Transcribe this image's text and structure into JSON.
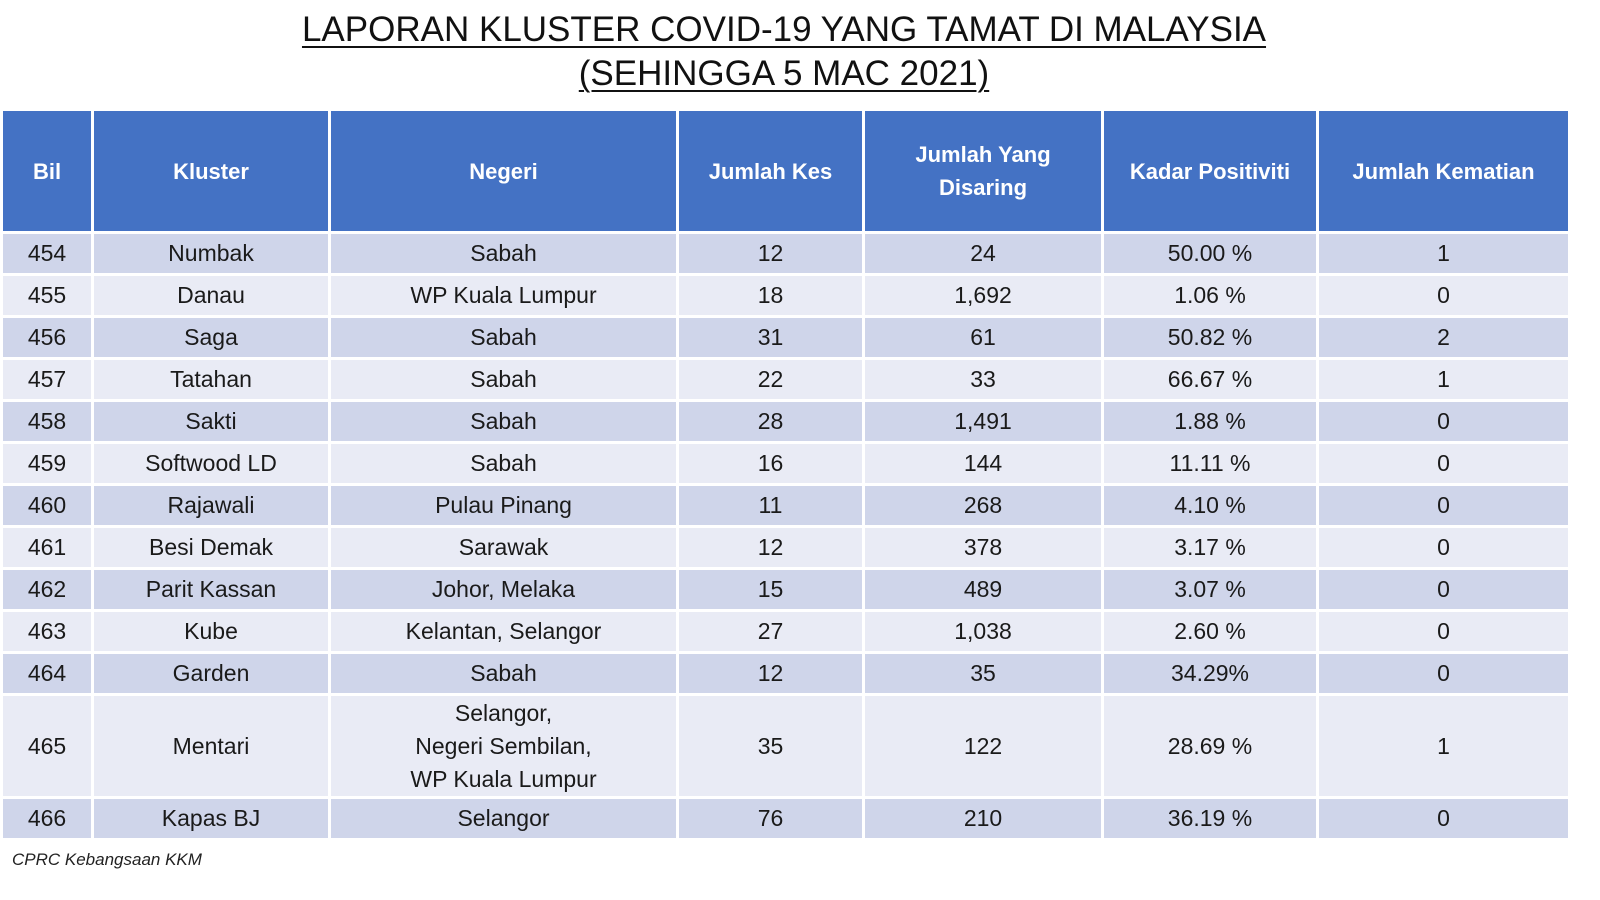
{
  "title": {
    "line1": "LAPORAN KLUSTER COVID-19 YANG TAMAT DI MALAYSIA",
    "line2": "(SEHINGGA 5 MAC 2021)"
  },
  "table": {
    "headers": [
      "Bil",
      "Kluster",
      "Negeri",
      "Jumlah Kes",
      "Jumlah Yang Disaring",
      "Kadar Positiviti",
      "Jumlah Kematian"
    ],
    "rows": [
      {
        "bil": "454",
        "kluster": "Numbak",
        "negeri": [
          "Sabah"
        ],
        "kes": "12",
        "disaring": "24",
        "positiviti": "50.00 %",
        "kematian": "1"
      },
      {
        "bil": "455",
        "kluster": "Danau",
        "negeri": [
          "WP Kuala Lumpur"
        ],
        "kes": "18",
        "disaring": "1,692",
        "positiviti": "1.06 %",
        "kematian": "0"
      },
      {
        "bil": "456",
        "kluster": "Saga",
        "negeri": [
          "Sabah"
        ],
        "kes": "31",
        "disaring": "61",
        "positiviti": "50.82 %",
        "kematian": "2"
      },
      {
        "bil": "457",
        "kluster": "Tatahan",
        "negeri": [
          "Sabah"
        ],
        "kes": "22",
        "disaring": "33",
        "positiviti": "66.67 %",
        "kematian": "1"
      },
      {
        "bil": "458",
        "kluster": "Sakti",
        "negeri": [
          "Sabah"
        ],
        "kes": "28",
        "disaring": "1,491",
        "positiviti": "1.88 %",
        "kematian": "0"
      },
      {
        "bil": "459",
        "kluster": "Softwood LD",
        "negeri": [
          "Sabah"
        ],
        "kes": "16",
        "disaring": "144",
        "positiviti": "11.11 %",
        "kematian": "0"
      },
      {
        "bil": "460",
        "kluster": "Rajawali",
        "negeri": [
          "Pulau Pinang"
        ],
        "kes": "11",
        "disaring": "268",
        "positiviti": "4.10 %",
        "kematian": "0"
      },
      {
        "bil": "461",
        "kluster": "Besi Demak",
        "negeri": [
          "Sarawak"
        ],
        "kes": "12",
        "disaring": "378",
        "positiviti": "3.17 %",
        "kematian": "0"
      },
      {
        "bil": "462",
        "kluster": "Parit Kassan",
        "negeri": [
          "Johor, Melaka"
        ],
        "kes": "15",
        "disaring": "489",
        "positiviti": "3.07 %",
        "kematian": "0"
      },
      {
        "bil": "463",
        "kluster": "Kube",
        "negeri": [
          "Kelantan, Selangor"
        ],
        "kes": "27",
        "disaring": "1,038",
        "positiviti": "2.60 %",
        "kematian": "0"
      },
      {
        "bil": "464",
        "kluster": "Garden",
        "negeri": [
          "Sabah"
        ],
        "kes": "12",
        "disaring": "35",
        "positiviti": "34.29%",
        "kematian": "0"
      },
      {
        "bil": "465",
        "kluster": "Mentari",
        "negeri": [
          "Selangor,",
          "Negeri Sembilan,",
          "WP Kuala Lumpur"
        ],
        "kes": "35",
        "disaring": "122",
        "positiviti": "28.69 %",
        "kematian": "1"
      },
      {
        "bil": "466",
        "kluster": "Kapas BJ",
        "negeri": [
          "Selangor"
        ],
        "kes": "76",
        "disaring": "210",
        "positiviti": "36.19 %",
        "kematian": "0"
      }
    ]
  },
  "footer": "CPRC Kebangsaan KKM",
  "colors": {
    "header_bg": "#4472c4",
    "row_dark": "#cfd5ea",
    "row_light": "#e9ebf5"
  }
}
